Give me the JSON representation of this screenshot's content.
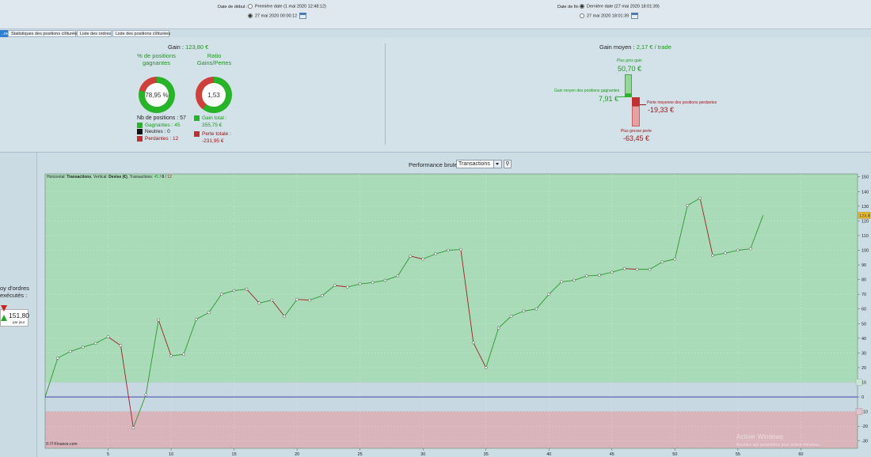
{
  "dates": {
    "start": {
      "label": "Date de début :",
      "opt1": "Première date (1 mai 2020 12:48:12)",
      "opt2": "27 mai 2020 00:00:12"
    },
    "end": {
      "label": "Date de fin :",
      "opt1": "Dernière date (27 mai 2020 18:01:39)",
      "opt2": "27 mai 2020 18:01:39"
    }
  },
  "tabs": [
    {
      "label": "..ne"
    },
    {
      "label": "Statistiques des positions clôturées"
    },
    {
      "label": "Liste des ordres"
    },
    {
      "label": "Liste des positions clôturées"
    }
  ],
  "summary": {
    "gain_label": "Gain :",
    "gain_value": "123,80 €",
    "pct_title": "% de positions gagnantes",
    "pct_value": "78,95 %",
    "pct_fraction": 0.7895,
    "ratio_title": "Ratio Gains/Pertes",
    "ratio_value": "1,53",
    "ratio_fraction": 0.605,
    "nb_positions": "Nb de positions : 57",
    "gagnantes": "Gagnantes : 45",
    "neutres": "Neutres : 0",
    "perdantes": "Perdantes : 12",
    "gain_total_label": "Gain total :",
    "gain_total": "355,75 €",
    "perte_totale_label": "Perte totale :",
    "perte_totale": "-231,95 €",
    "gain_moyen_label": "Gain moyen :",
    "gain_moyen_value": "2,17 € / trade",
    "plus_gros_gain_label": "Plus gros gain",
    "plus_gros_gain": "50,70 €",
    "gain_moyen_pos_label": "Gain moyen des positions gagnantes",
    "gain_moyen_pos": "7,91 €",
    "perte_moyenne_label": "Perte moyenne des positions perdantes",
    "perte_moyenne": "-19,33 €",
    "plus_grosse_perte_label": "Plus grosse perte",
    "plus_grosse_perte": "-63,45 €"
  },
  "side": {
    "title_line1": "oy d'ordres",
    "title_line2": "exécutés :",
    "value": "151,80",
    "unit": "par jour"
  },
  "chart_header": {
    "label": "Performance brute",
    "select": "Transactions"
  },
  "chart_data": {
    "type": "line",
    "subtitle_prefix": "Horizontal:",
    "subtitle_h": "Transactions",
    "subtitle_v_prefix": ", Vertical:",
    "subtitle_v": "Devise (€)",
    "subtitle_t_prefix": ", Transactions:",
    "subtitle_t_a": "45",
    "subtitle_t_b": "0",
    "subtitle_t_c": "12",
    "watermark": "© IT-Finance.com",
    "last_value_label": "123,8",
    "x_ticks": [
      "5",
      "10",
      "15",
      "20",
      "25",
      "30",
      "35",
      "40",
      "45",
      "50",
      "55",
      "60"
    ],
    "y_ticks": [
      "150",
      "140",
      "130",
      "120",
      "110",
      "100",
      "90",
      "80",
      "70",
      "60",
      "50",
      "40",
      "30",
      "20",
      "10",
      "0",
      "-10",
      "-20",
      "-30"
    ],
    "xlim": [
      0,
      64.5
    ],
    "ylim": [
      -35,
      152
    ],
    "x": [
      0,
      1,
      2,
      3,
      4,
      5,
      6,
      7,
      8,
      9,
      10,
      11,
      12,
      13,
      14,
      15,
      16,
      17,
      18,
      19,
      20,
      21,
      22,
      23,
      24,
      25,
      26,
      27,
      28,
      29,
      30,
      31,
      32,
      33,
      34,
      35,
      36,
      37,
      38,
      39,
      40,
      41,
      42,
      43,
      44,
      45,
      46,
      47,
      48,
      49,
      50,
      51,
      52,
      53,
      54,
      55,
      56,
      57
    ],
    "values": [
      0,
      26.5,
      31,
      34,
      36.5,
      41,
      35,
      -21,
      1.5,
      52.5,
      28,
      29,
      53,
      57.5,
      70,
      72.5,
      73.5,
      64,
      66,
      55,
      66.5,
      66,
      69,
      76,
      75,
      77,
      78,
      79.5,
      82.5,
      96,
      94,
      97.5,
      100,
      100.5,
      37,
      20,
      47,
      55,
      58.5,
      60,
      70,
      78.5,
      79.5,
      82.5,
      83,
      85,
      87.5,
      87,
      87,
      92,
      94,
      130.5,
      135.5,
      96.5,
      98,
      100,
      101,
      123.8
    ],
    "band_top": 10,
    "band_bottom": -10
  },
  "watermark_os": {
    "line1": "Activer Windows",
    "line2": "Accédez aux paramètres pour activer Windows."
  }
}
